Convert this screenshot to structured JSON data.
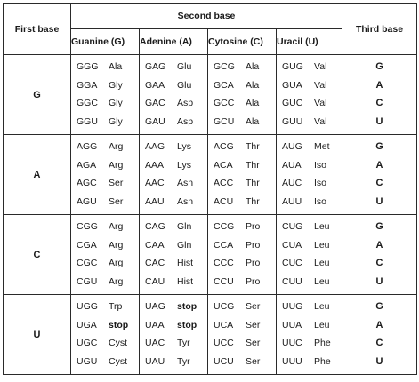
{
  "header": {
    "first_base": "First base",
    "second_base": "Second base",
    "third_base": "Third base",
    "columns": [
      "Guanine (G)",
      "Adenine (A)",
      "Cytosine (C)",
      "Uracil (U)"
    ]
  },
  "rows": [
    {
      "first": "G",
      "groups": [
        [
          [
            "GGG",
            "Ala"
          ],
          [
            "GGA",
            "Gly"
          ],
          [
            "GGC",
            "Gly"
          ],
          [
            "GGU",
            "Gly"
          ]
        ],
        [
          [
            "GAG",
            "Glu"
          ],
          [
            "GAA",
            "Glu"
          ],
          [
            "GAC",
            "Asp"
          ],
          [
            "GAU",
            "Asp"
          ]
        ],
        [
          [
            "GCG",
            "Ala"
          ],
          [
            "GCA",
            "Ala"
          ],
          [
            "GCC",
            "Ala"
          ],
          [
            "GCU",
            "Ala"
          ]
        ],
        [
          [
            "GUG",
            "Val"
          ],
          [
            "GUA",
            "Val"
          ],
          [
            "GUC",
            "Val"
          ],
          [
            "GUU",
            "Val"
          ]
        ]
      ],
      "third": [
        "G",
        "A",
        "C",
        "U"
      ]
    },
    {
      "first": "A",
      "groups": [
        [
          [
            "AGG",
            "Arg"
          ],
          [
            "AGA",
            "Arg"
          ],
          [
            "AGC",
            "Ser"
          ],
          [
            "AGU",
            "Ser"
          ]
        ],
        [
          [
            "AAG",
            "Lys"
          ],
          [
            "AAA",
            "Lys"
          ],
          [
            "AAC",
            "Asn"
          ],
          [
            "AAU",
            "Asn"
          ]
        ],
        [
          [
            "ACG",
            "Thr"
          ],
          [
            "ACA",
            "Thr"
          ],
          [
            "ACC",
            "Thr"
          ],
          [
            "ACU",
            "Thr"
          ]
        ],
        [
          [
            "AUG",
            "Met"
          ],
          [
            "AUA",
            "Iso"
          ],
          [
            "AUC",
            "Iso"
          ],
          [
            "AUU",
            "Iso"
          ]
        ]
      ],
      "third": [
        "G",
        "A",
        "C",
        "U"
      ]
    },
    {
      "first": "C",
      "groups": [
        [
          [
            "CGG",
            "Arg"
          ],
          [
            "CGA",
            "Arg"
          ],
          [
            "CGC",
            "Arg"
          ],
          [
            "CGU",
            "Arg"
          ]
        ],
        [
          [
            "CAG",
            "Gln"
          ],
          [
            "CAA",
            "Gln"
          ],
          [
            "CAC",
            "Hist"
          ],
          [
            "CAU",
            "Hist"
          ]
        ],
        [
          [
            "CCG",
            "Pro"
          ],
          [
            "CCA",
            "Pro"
          ],
          [
            "CCC",
            "Pro"
          ],
          [
            "CCU",
            "Pro"
          ]
        ],
        [
          [
            "CUG",
            "Leu"
          ],
          [
            "CUA",
            "Leu"
          ],
          [
            "CUC",
            "Leu"
          ],
          [
            "CUU",
            "Leu"
          ]
        ]
      ],
      "third": [
        "G",
        "A",
        "C",
        "U"
      ]
    },
    {
      "first": "U",
      "groups": [
        [
          [
            "UGG",
            "Trp"
          ],
          [
            "UGA",
            "stop"
          ],
          [
            "UGC",
            "Cyst"
          ],
          [
            "UGU",
            "Cyst"
          ]
        ],
        [
          [
            "UAG",
            "stop"
          ],
          [
            "UAA",
            "stop"
          ],
          [
            "UAC",
            "Tyr"
          ],
          [
            "UAU",
            "Tyr"
          ]
        ],
        [
          [
            "UCG",
            "Ser"
          ],
          [
            "UCA",
            "Ser"
          ],
          [
            "UCC",
            "Ser"
          ],
          [
            "UCU",
            "Ser"
          ]
        ],
        [
          [
            "UUG",
            "Leu"
          ],
          [
            "UUA",
            "Leu"
          ],
          [
            "UUC",
            "Phe"
          ],
          [
            "UUU",
            "Phe"
          ]
        ]
      ],
      "third": [
        "G",
        "A",
        "C",
        "U"
      ]
    }
  ],
  "styles": {
    "bold_values": [
      "stop"
    ],
    "border_color": "#2a2a2a",
    "text_color": "#1a1a1a"
  }
}
